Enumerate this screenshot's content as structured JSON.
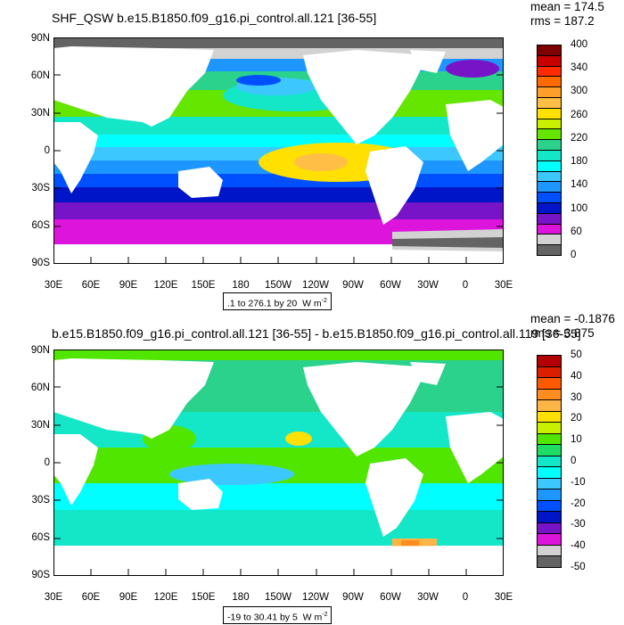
{
  "panels": [
    {
      "title": "SHF_QSW b.e15.B1850.f09_g16.pi_control.all.121 [36-55]",
      "mean_text": "mean = 174.5",
      "rms_text": "rms = 187.2",
      "range_text": ".1 to 276.1 by 20",
      "units": "W m",
      "units_exp": "-2",
      "colorbar_labels": [
        "400",
        "340",
        "300",
        "260",
        "220",
        "180",
        "140",
        "100",
        "60",
        "0"
      ],
      "colors": [
        "#7e0000",
        "#c80000",
        "#ff2a00",
        "#ff6a00",
        "#ff9e2a",
        "#ffbe46",
        "#ffe000",
        "#c8f000",
        "#64e600",
        "#2ad28c",
        "#14e6c8",
        "#00ffff",
        "#3cc8ff",
        "#1e96ff",
        "#0050ff",
        "#0014c8",
        "#7814c8",
        "#dc14dc",
        "#d2d2d2",
        "#646464"
      ]
    },
    {
      "title": "b.e15.B1850.f09_g16.pi_control.all.121 [36-55] - b.e15.B1850.f09_g16.pi_control.all.119 [36-55]",
      "mean_text": "mean = -0.1876",
      "rms_text": "rms = 3.875",
      "range_text": "-19 to 30.41 by 5",
      "units": "W m",
      "units_exp": "-2",
      "colorbar_labels": [
        "50",
        "40",
        "30",
        "20",
        "10",
        "0",
        "-10",
        "-20",
        "-30",
        "-40",
        "-50"
      ],
      "colors": [
        "#b40000",
        "#dc1e00",
        "#ff5a00",
        "#ff8c1e",
        "#ffb446",
        "#ffe000",
        "#c8f000",
        "#50e600",
        "#1edc64",
        "#14e6c8",
        "#00ffff",
        "#3cc8ff",
        "#1e96ff",
        "#0050ff",
        "#0014c8",
        "#7814c8",
        "#dc14dc",
        "#d2d2d2",
        "#646464"
      ]
    }
  ],
  "y_ticks": [
    "90N",
    "60N",
    "30N",
    "0",
    "30S",
    "60S",
    "90S"
  ],
  "x_ticks": [
    "30E",
    "60E",
    "90E",
    "120E",
    "150E",
    "180",
    "150W",
    "120W",
    "90W",
    "60W",
    "30W",
    "0",
    "30E"
  ]
}
